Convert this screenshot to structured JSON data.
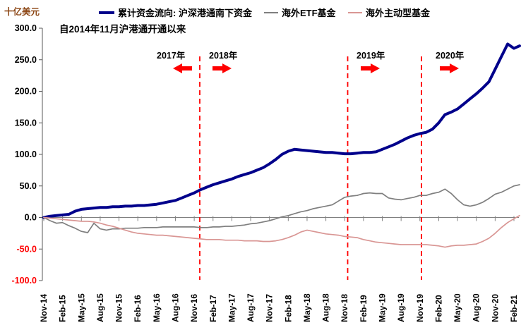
{
  "unit_label": "十亿美元",
  "note": "自2014年11月沪港通开通以来",
  "legend": [
    {
      "label": "累计资金流向: 沪深港通南下资金",
      "color": "#00008B",
      "thick": true
    },
    {
      "label": "海外ETF基金",
      "color": "#7F7F7F",
      "thick": false
    },
    {
      "label": "海外主动型基金",
      "color": "#D99694",
      "thick": false
    }
  ],
  "annotations": [
    {
      "label": "2017年",
      "arrow": "left"
    },
    {
      "label": "2018年",
      "arrow": "right"
    },
    {
      "label": "2019年",
      "arrow": "right"
    },
    {
      "label": "2020年",
      "arrow": "right"
    }
  ],
  "colors": {
    "accent_red": "#FF0000",
    "axis_gray": "#808080",
    "negative_tick": "#FF0000",
    "unit_label_brown": "#8B4513"
  },
  "chart_data": {
    "type": "line",
    "title": "",
    "ylabel": "十亿美元",
    "ylim": [
      -100,
      300
    ],
    "ytick_interval": 50,
    "y_tick_labels": [
      "300.0",
      "250.0",
      "200.0",
      "150.0",
      "100.0",
      "50.0",
      "0.0",
      "-50.0",
      "-100.0"
    ],
    "x_start": "2014-11",
    "x_step_months": 1,
    "n_points": 77,
    "x_tick_labels": [
      "Nov-14",
      "Feb-15",
      "May-15",
      "Aug-15",
      "Nov-15",
      "Feb-16",
      "May-16",
      "Aug-16",
      "Nov-16",
      "Feb-17",
      "May-17",
      "Aug-17",
      "Nov-17",
      "Feb-18",
      "May-18",
      "Aug-18",
      "Nov-18",
      "Feb-19",
      "May-19",
      "Aug-19",
      "Nov-19",
      "Feb-20",
      "May-20",
      "Aug-20",
      "Nov-20",
      "Feb-21"
    ],
    "x_tick_every_months": 3,
    "grid": false,
    "legend_position": "top",
    "vlines_at": [
      "2017-01",
      "2019-01",
      "2020-01"
    ],
    "series": [
      {
        "name": "累计资金流向: 沪深港通南下资金",
        "color": "#00008B",
        "width": 4,
        "values": [
          0,
          2,
          3,
          4,
          5,
          10,
          13,
          14,
          15,
          16,
          16,
          17,
          17,
          18,
          18,
          19,
          19,
          20,
          21,
          23,
          25,
          27,
          31,
          35,
          39,
          44,
          48,
          52,
          55,
          58,
          61,
          65,
          68,
          71,
          75,
          79,
          85,
          92,
          100,
          105,
          108,
          107,
          106,
          105,
          104,
          103,
          103,
          102,
          101,
          101,
          102,
          103,
          103,
          104,
          108,
          112,
          116,
          121,
          126,
          130,
          133,
          135,
          140,
          150,
          163,
          167,
          172,
          180,
          188,
          196,
          205,
          215,
          235,
          255,
          275,
          268,
          272
        ]
      },
      {
        "name": "海外ETF基金",
        "color": "#7F7F7F",
        "width": 1.7,
        "values": [
          0,
          -5,
          -9,
          -8,
          -13,
          -17,
          -22,
          -24,
          -9,
          -18,
          -20,
          -18,
          -18,
          -17,
          -17,
          -17,
          -16,
          -16,
          -16,
          -15,
          -15,
          -15,
          -15,
          -15,
          -15,
          -16,
          -16,
          -15,
          -15,
          -14,
          -14,
          -13,
          -12,
          -10,
          -9,
          -7,
          -5,
          -2,
          1,
          3,
          6,
          9,
          11,
          14,
          16,
          18,
          20,
          26,
          32,
          34,
          35,
          38,
          39,
          38,
          38,
          31,
          29,
          28,
          30,
          32,
          35,
          35,
          38,
          40,
          45,
          38,
          28,
          20,
          18,
          20,
          24,
          30,
          37,
          40,
          45,
          50,
          52
        ]
      },
      {
        "name": "海外主动型基金",
        "color": "#D99694",
        "width": 1.7,
        "values": [
          0,
          -1,
          -2,
          -3,
          -4,
          -5,
          -6,
          -6,
          -7,
          -9,
          -12,
          -14,
          -17,
          -20,
          -23,
          -25,
          -26,
          -27,
          -28,
          -28,
          -29,
          -30,
          -31,
          -32,
          -33,
          -34,
          -35,
          -35,
          -35,
          -36,
          -36,
          -36,
          -37,
          -37,
          -37,
          -38,
          -38,
          -37,
          -35,
          -32,
          -28,
          -23,
          -20,
          -22,
          -24,
          -26,
          -27,
          -28,
          -30,
          -31,
          -32,
          -35,
          -37,
          -39,
          -40,
          -41,
          -42,
          -43,
          -43,
          -43,
          -43,
          -43,
          -44,
          -45,
          -47,
          -45,
          -44,
          -44,
          -43,
          -42,
          -38,
          -33,
          -25,
          -16,
          -8,
          -2,
          3
        ]
      }
    ]
  }
}
